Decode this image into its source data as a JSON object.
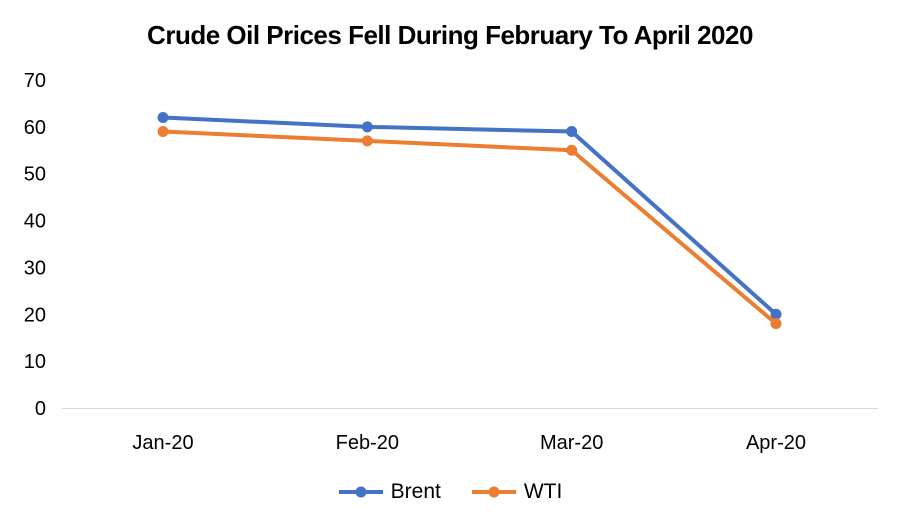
{
  "chart_data": {
    "type": "line",
    "title": "Crude Oil Prices Fell During February To April 2020",
    "categories": [
      "Jan-20",
      "Feb-20",
      "Mar-20",
      "Apr-20"
    ],
    "series": [
      {
        "name": "Brent",
        "color": "#4472C4",
        "values": [
          62,
          60,
          59,
          20
        ]
      },
      {
        "name": "WTI",
        "color": "#ED7D31",
        "values": [
          59,
          57,
          55,
          18
        ]
      }
    ],
    "xlabel": "",
    "ylabel": "",
    "ylim": [
      0,
      70
    ],
    "yticks": [
      0,
      10,
      20,
      30,
      40,
      50,
      60,
      70
    ],
    "grid": false,
    "legend_position": "bottom",
    "axis_line_color": "#D9D9D9",
    "tick_label_color": "#000000",
    "title_color": "#000000",
    "background_color": "#FFFFFF"
  }
}
